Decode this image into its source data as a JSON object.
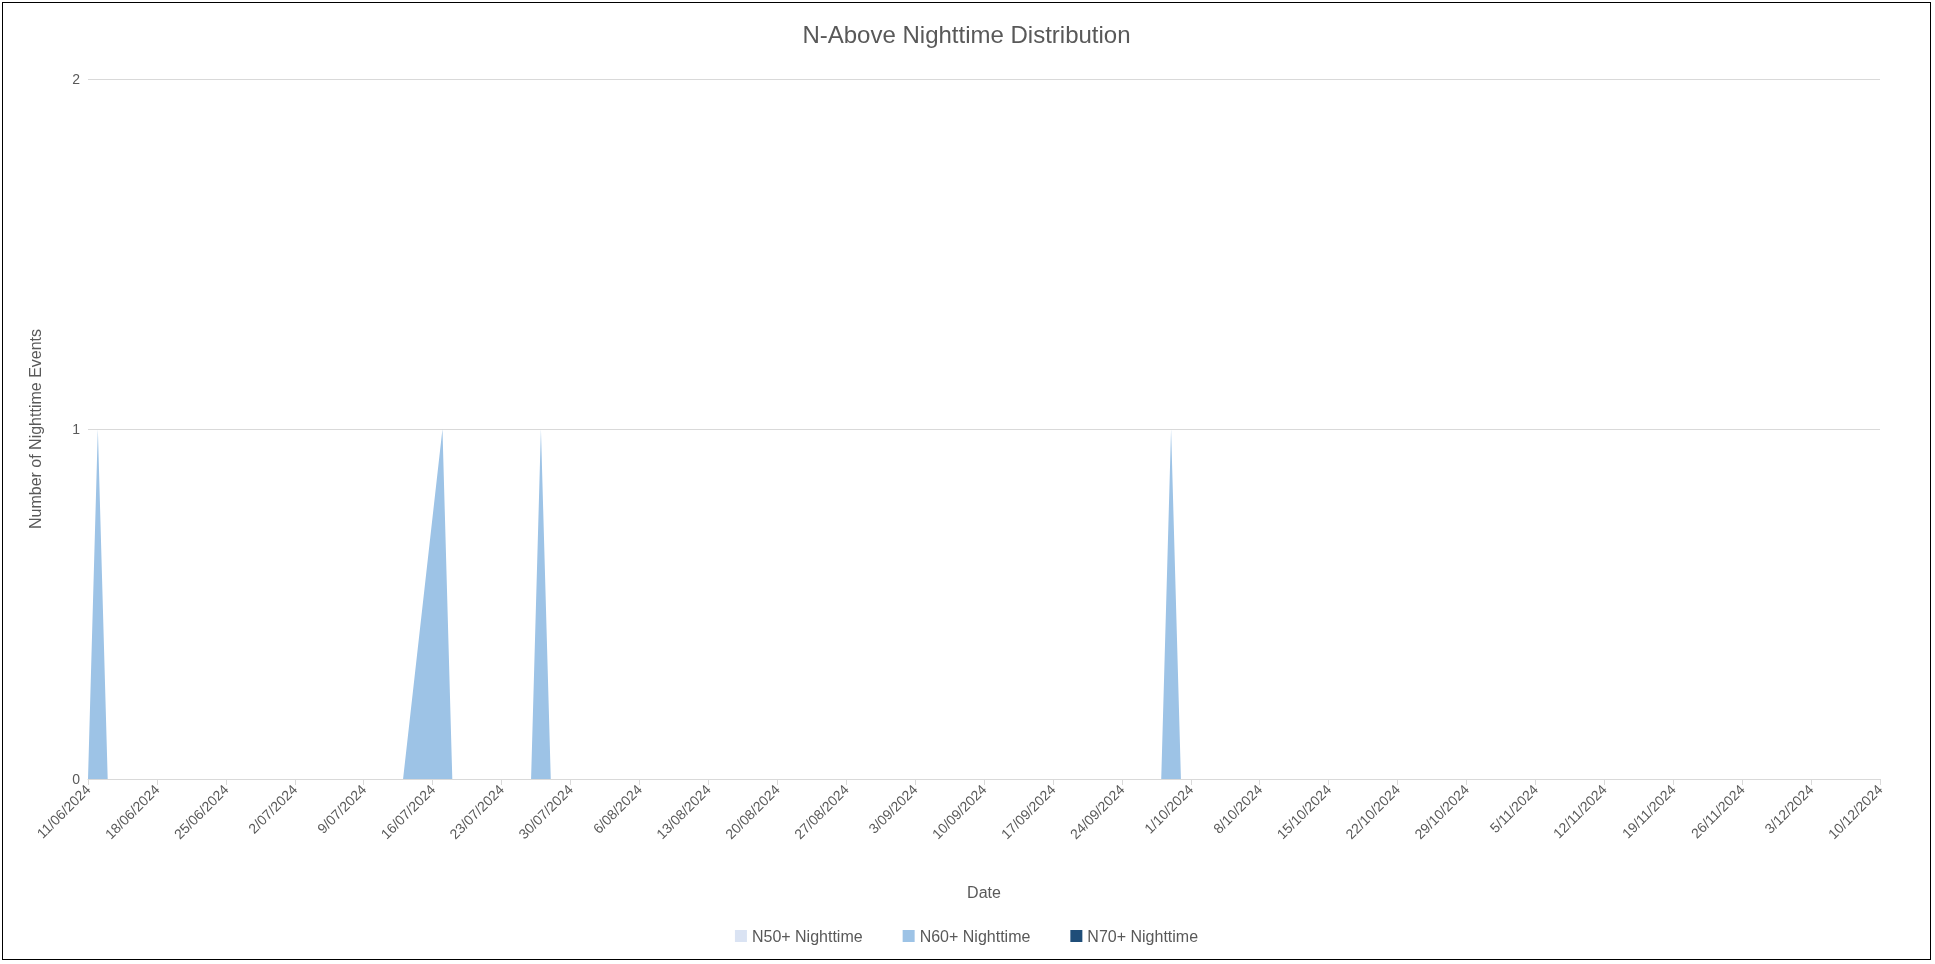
{
  "chart_data": {
    "type": "area",
    "title": "N-Above Nighttime Distribution",
    "xlabel": "Date",
    "ylabel": "Number of Nighttime Events",
    "x": [
      "2024-06-11",
      "2024-06-12",
      "2024-06-13",
      "2024-07-13",
      "2024-07-17",
      "2024-07-18",
      "2024-07-26",
      "2024-07-27",
      "2024-07-28",
      "2024-09-28",
      "2024-09-29",
      "2024-09-30",
      "2024-12-10"
    ],
    "series": [
      {
        "name": "N50+ Nighttime",
        "color": "#dae3f3",
        "values": [
          null,
          null,
          null,
          null,
          null,
          null,
          null,
          null,
          null,
          null,
          null,
          null,
          null
        ]
      },
      {
        "name": "N60+ Nighttime",
        "color": "#9dc3e6",
        "values": [
          0,
          1,
          0,
          0,
          1,
          0,
          0,
          1,
          0,
          0,
          1,
          0,
          0
        ]
      },
      {
        "name": "N70+ Nighttime",
        "color": "#1f4e79",
        "values": [
          null,
          null,
          null,
          null,
          null,
          null,
          null,
          null,
          null,
          null,
          null,
          null,
          null
        ]
      }
    ],
    "xlim": [
      "2024-06-11",
      "2024-12-10"
    ],
    "xticks": [
      {
        "value": "2024-06-11",
        "label": "11/06/2024"
      },
      {
        "value": "2024-06-18",
        "label": "18/06/2024"
      },
      {
        "value": "2024-06-25",
        "label": "25/06/2024"
      },
      {
        "value": "2024-07-02",
        "label": "2/07/2024"
      },
      {
        "value": "2024-07-09",
        "label": "9/07/2024"
      },
      {
        "value": "2024-07-16",
        "label": "16/07/2024"
      },
      {
        "value": "2024-07-23",
        "label": "23/07/2024"
      },
      {
        "value": "2024-07-30",
        "label": "30/07/2024"
      },
      {
        "value": "2024-08-06",
        "label": "6/08/2024"
      },
      {
        "value": "2024-08-13",
        "label": "13/08/2024"
      },
      {
        "value": "2024-08-20",
        "label": "20/08/2024"
      },
      {
        "value": "2024-08-27",
        "label": "27/08/2024"
      },
      {
        "value": "2024-09-03",
        "label": "3/09/2024"
      },
      {
        "value": "2024-09-10",
        "label": "10/09/2024"
      },
      {
        "value": "2024-09-17",
        "label": "17/09/2024"
      },
      {
        "value": "2024-09-24",
        "label": "24/09/2024"
      },
      {
        "value": "2024-10-01",
        "label": "1/10/2024"
      },
      {
        "value": "2024-10-08",
        "label": "8/10/2024"
      },
      {
        "value": "2024-10-15",
        "label": "15/10/2024"
      },
      {
        "value": "2024-10-22",
        "label": "22/10/2024"
      },
      {
        "value": "2024-10-29",
        "label": "29/10/2024"
      },
      {
        "value": "2024-11-05",
        "label": "5/11/2024"
      },
      {
        "value": "2024-11-12",
        "label": "12/11/2024"
      },
      {
        "value": "2024-11-19",
        "label": "19/11/2024"
      },
      {
        "value": "2024-11-26",
        "label": "26/11/2024"
      },
      {
        "value": "2024-12-03",
        "label": "3/12/2024"
      },
      {
        "value": "2024-12-10",
        "label": "10/12/2024"
      }
    ],
    "ylim": [
      0,
      2
    ],
    "yticks": [
      0,
      1,
      2
    ],
    "grid": "y",
    "legend": "bottom"
  }
}
